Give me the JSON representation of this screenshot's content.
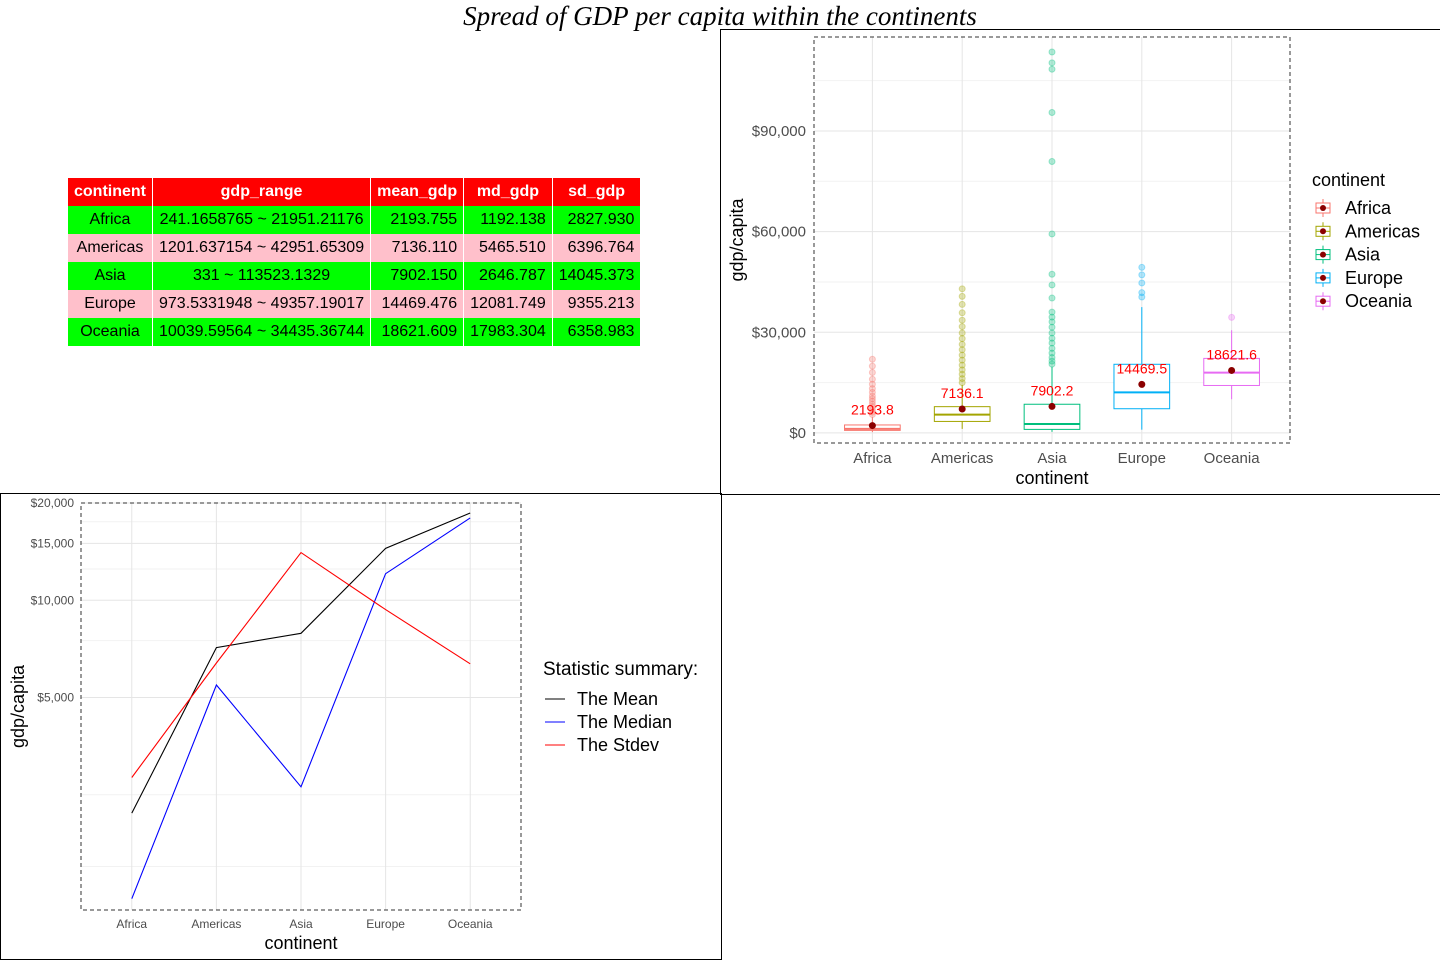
{
  "title": "Spread of GDP per capita within the continents",
  "table": {
    "columns": [
      "continent",
      "gdp_range",
      "mean_gdp",
      "md_gdp",
      "sd_gdp"
    ],
    "rows": [
      [
        "Africa",
        "241.1658765 ~ 21951.21176",
        "2193.755",
        "1192.138",
        "2827.930"
      ],
      [
        "Americas",
        "1201.637154 ~ 42951.65309",
        "7136.110",
        "5465.510",
        "6396.764"
      ],
      [
        "Asia",
        "331 ~ 113523.1329",
        "7902.150",
        "2646.787",
        "14045.373"
      ],
      [
        "Europe",
        "973.5331948 ~ 49357.19017",
        "14469.476",
        "12081.749",
        "9355.213"
      ],
      [
        "Oceania",
        "10039.59564 ~ 34435.36744",
        "18621.609",
        "17983.304",
        "6358.983"
      ]
    ],
    "colors": {
      "header": "#ff0000",
      "odd_row": "#00ff00",
      "even_row": "#ffc0cb"
    }
  },
  "chart_data": [
    {
      "type": "boxplot",
      "xlabel": "continent",
      "ylabel": "gdp/capita",
      "categories": [
        "Africa",
        "Americas",
        "Asia",
        "Europe",
        "Oceania"
      ],
      "ylim": [
        -3000,
        118000
      ],
      "yticks": [
        0,
        30000,
        60000,
        90000
      ],
      "ytick_labels": [
        "$0",
        "$30,000",
        "$60,000",
        "$90,000"
      ],
      "grid": true,
      "legend_title": "continent",
      "legend_position": "right",
      "colors": [
        "#f8766d",
        "#a3a500",
        "#00bf7d",
        "#00b0f6",
        "#e76bf3"
      ],
      "mean_marker_color": "#8b0000",
      "mean_label_color": "#ff0000",
      "boxes": [
        {
          "name": "Africa",
          "lower_whisker": 241,
          "q1": 761,
          "median": 1192,
          "q3": 2377,
          "upper_whisker": 4700,
          "mean": 2193.8,
          "mean_label": "2193.8",
          "outliers": [
            5500,
            6200,
            7000,
            7800,
            8600,
            9400,
            10200,
            11000,
            12100,
            13200,
            14500,
            16000,
            18000,
            19900,
            21951
          ]
        },
        {
          "name": "Americas",
          "lower_whisker": 1202,
          "q1": 3428,
          "median": 5466,
          "q3": 7830,
          "upper_whisker": 14300,
          "mean": 7136.1,
          "mean_label": "7136.1",
          "outliers": [
            15000,
            16200,
            17500,
            18800,
            20200,
            21700,
            23200,
            24800,
            26400,
            28100,
            29800,
            31700,
            33600,
            35800,
            38300,
            40700,
            42952
          ]
        },
        {
          "name": "Asia",
          "lower_whisker": 331,
          "q1": 1057,
          "median": 2647,
          "q3": 8549,
          "upper_whisker": 19700,
          "mean": 7902.2,
          "mean_label": "7902.2",
          "outliers": [
            20500,
            21400,
            22500,
            23800,
            25200,
            26800,
            28200,
            29800,
            31500,
            33100,
            34500,
            36000,
            40200,
            44100,
            47300,
            59300,
            80900,
            95500,
            108400,
            110300,
            113523
          ]
        },
        {
          "name": "Europe",
          "lower_whisker": 974,
          "q1": 7213,
          "median": 12082,
          "q3": 20461,
          "upper_whisker": 37500,
          "mean": 14469.5,
          "mean_label": "14469.5",
          "outliers": [
            40500,
            41800,
            44700,
            47100,
            49357
          ]
        },
        {
          "name": "Oceania",
          "lower_whisker": 10040,
          "q1": 14142,
          "median": 17983,
          "q3": 22214,
          "upper_whisker": 30600,
          "mean": 18621.6,
          "mean_label": "18621.6",
          "outliers": [
            34435
          ]
        }
      ]
    },
    {
      "type": "line",
      "xlabel": "continent",
      "ylabel": "gdp/capita",
      "x": [
        "Africa",
        "Americas",
        "Asia",
        "Europe",
        "Oceania"
      ],
      "y_scale": "log10",
      "ylim": [
        1100,
        20000
      ],
      "yticks": [
        5000,
        10000,
        15000,
        20000
      ],
      "ytick_labels": [
        "$5,000",
        "$10,000",
        "$15,000",
        "$20,000"
      ],
      "grid": true,
      "legend_title": "Statistic summary:",
      "legend_position": "right",
      "series": [
        {
          "name": "The Mean",
          "color": "#000000",
          "values": [
            2193.755,
            7136.11,
            7902.15,
            14469.476,
            18621.609
          ]
        },
        {
          "name": "The Median",
          "color": "#0000ff",
          "values": [
            1192.138,
            5465.51,
            2646.787,
            12081.749,
            17983.304
          ]
        },
        {
          "name": "The Stdev",
          "color": "#ff0000",
          "values": [
            2827.93,
            6396.764,
            14045.373,
            9355.213,
            6358.983
          ]
        }
      ]
    }
  ]
}
